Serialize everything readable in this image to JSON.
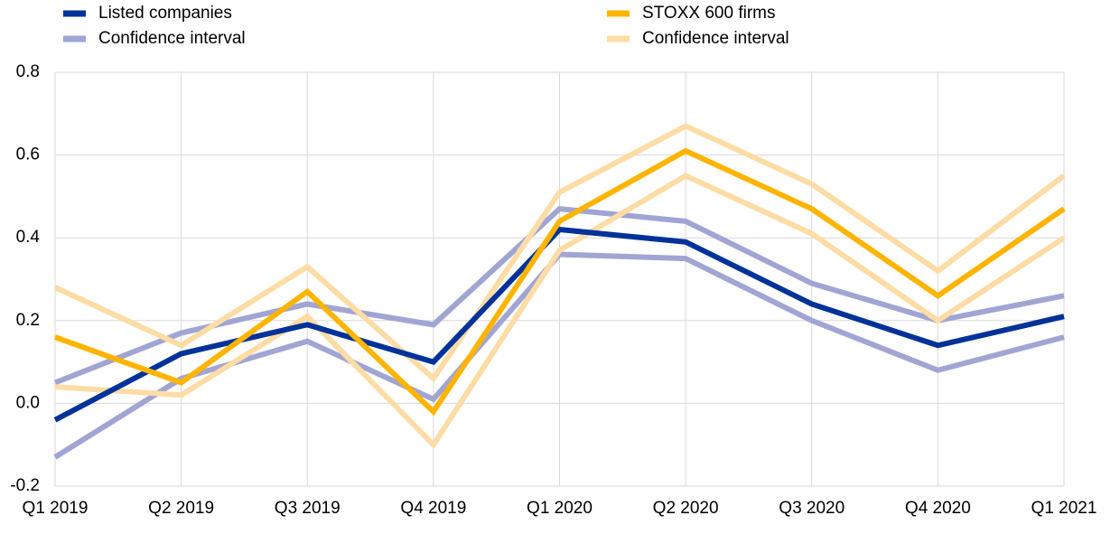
{
  "chart_data": {
    "type": "line",
    "categories": [
      "Q1 2019",
      "Q2 2019",
      "Q3 2019",
      "Q4 2019",
      "Q1 2020",
      "Q2 2020",
      "Q3 2020",
      "Q4 2020",
      "Q1 2021"
    ],
    "series": [
      {
        "name": "Listed companies",
        "color": "#003299",
        "values": [
          -0.04,
          0.12,
          0.19,
          0.1,
          0.42,
          0.39,
          0.24,
          0.14,
          0.21
        ]
      },
      {
        "name": "Confidence interval",
        "color": "#a0a5d3",
        "values": [
          0.05,
          0.17,
          0.24,
          0.19,
          0.47,
          0.44,
          0.29,
          0.2,
          0.26
        ],
        "lower": [
          -0.13,
          0.06,
          0.15,
          0.01,
          0.36,
          0.35,
          0.2,
          0.08,
          0.16
        ]
      },
      {
        "name": "STOXX 600 firms",
        "color": "#ffb400",
        "values": [
          0.16,
          0.05,
          0.27,
          -0.02,
          0.44,
          0.61,
          0.47,
          0.26,
          0.47
        ]
      },
      {
        "name": "Confidence interval",
        "color": "#fddca5",
        "values": [
          0.28,
          0.14,
          0.33,
          0.06,
          0.51,
          0.67,
          0.53,
          0.32,
          0.55
        ],
        "lower": [
          0.04,
          0.02,
          0.21,
          -0.1,
          0.37,
          0.55,
          0.41,
          0.2,
          0.4
        ]
      }
    ],
    "ylim": [
      -0.2,
      0.8
    ],
    "yticks": [
      -0.2,
      {
        "value": 0,
        "label": "0.0"
      },
      0.2,
      0.4,
      0.6,
      0.8
    ],
    "grid": true
  }
}
